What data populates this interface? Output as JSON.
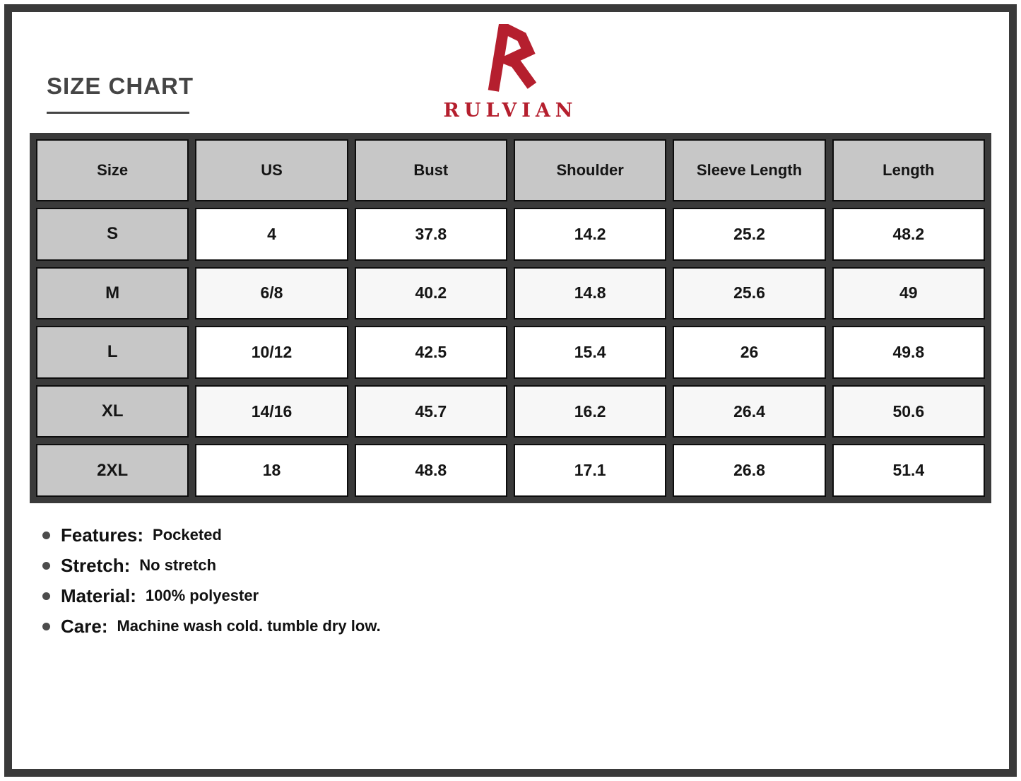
{
  "page": {
    "title": "SIZE CHART"
  },
  "brand": {
    "name": "RULVIAN",
    "logo": "angular-r-monogram",
    "color": "#b51f2e"
  },
  "chart_data": {
    "type": "table",
    "title": "SIZE CHART",
    "columns": [
      "Size",
      "US",
      "Bust",
      "Shoulder",
      "Sleeve Length",
      "Length"
    ],
    "rows": [
      [
        "S",
        "4",
        "37.8",
        "14.2",
        "25.2",
        "48.2"
      ],
      [
        "M",
        "6/8",
        "40.2",
        "14.8",
        "25.6",
        "49"
      ],
      [
        "L",
        "10/12",
        "42.5",
        "15.4",
        "26",
        "49.8"
      ],
      [
        "XL",
        "14/16",
        "45.7",
        "16.2",
        "26.4",
        "50.6"
      ],
      [
        "2XL",
        "18",
        "48.8",
        "17.1",
        "26.8",
        "51.4"
      ]
    ]
  },
  "details": [
    {
      "label": "Features:",
      "value": "Pocketed"
    },
    {
      "label": "Stretch:",
      "value": "No stretch"
    },
    {
      "label": "Material:",
      "value": "100% polyester"
    },
    {
      "label": "Care:",
      "value": "Machine wash cold. tumble dry low."
    }
  ],
  "colors": {
    "accent_red": "#b51f2e",
    "frame_dark": "#3a3a3a",
    "header_gray": "#c7c7c7",
    "text_dark": "#151515"
  }
}
